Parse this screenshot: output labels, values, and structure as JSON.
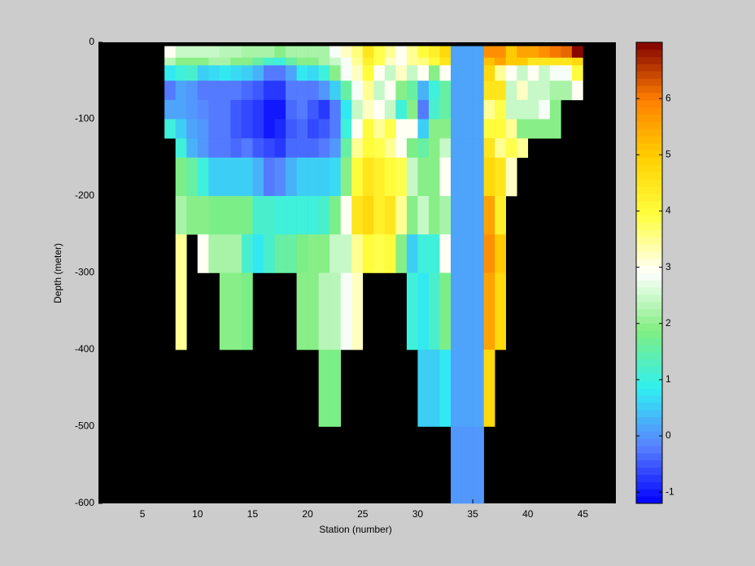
{
  "chart_data": {
    "type": "heatmap",
    "xlabel": "Station (number)",
    "ylabel": "Depth (meter)",
    "xlim": [
      1,
      48
    ],
    "xticks": [
      5,
      10,
      15,
      20,
      25,
      30,
      35,
      40,
      45
    ],
    "ylim": [
      -600,
      0
    ],
    "yticks": [
      -600,
      -500,
      -400,
      -300,
      -200,
      -100,
      0
    ],
    "clim": [
      -1.2,
      7
    ],
    "cticks": [
      -1,
      0,
      1,
      2,
      3,
      4,
      5,
      6
    ],
    "colormap": [
      "#0000ff",
      "#5a82ff",
      "#30f0f0",
      "#80ee80",
      "#ffffff",
      "#ffff40",
      "#ffd000",
      "#ff8000",
      "#800000"
    ],
    "background": "#000000",
    "xedges": [
      7,
      8,
      9,
      10,
      11,
      12,
      13,
      14,
      15,
      16,
      17,
      18,
      19,
      20,
      21,
      22,
      23,
      24,
      25,
      26,
      27,
      28,
      29,
      30,
      31,
      32,
      33,
      34,
      35,
      36,
      37,
      38,
      39,
      40,
      41,
      42,
      43,
      44,
      45
    ],
    "yedges": [
      -5,
      -20,
      -30,
      -50,
      -75,
      -100,
      -125,
      -150,
      -200,
      -250,
      -300,
      -400,
      -500,
      -600
    ],
    "z": [
      [
        3,
        2.5,
        2.5,
        2.5,
        2.5,
        2.3,
        2.3,
        2.2,
        2.2,
        2.2,
        2.0,
        2.2,
        2.2,
        2.2,
        2.2,
        2.8,
        3.2,
        3.6,
        4.5,
        3.8,
        3.5,
        3.0,
        3.5,
        4.0,
        4.3,
        4.8,
        0.1,
        0.1,
        0.1,
        5.8,
        5.8,
        5.0,
        5.5,
        5.5,
        5.8,
        6.0,
        6.2,
        7.0
      ],
      [
        2.3,
        2.0,
        2.0,
        2.0,
        2.2,
        2.2,
        2.0,
        2.0,
        1.5,
        1.2,
        1.0,
        1.5,
        2.0,
        2.0,
        2.2,
        2.5,
        2.8,
        3.5,
        4.3,
        3.8,
        3.2,
        3.0,
        3.5,
        3.6,
        4.0,
        4.5,
        0.1,
        0.1,
        0.1,
        5.2,
        5.5,
        5.0,
        5.0,
        4.5,
        4.5,
        4.5,
        4.5,
        4.8
      ],
      [
        0.8,
        1.0,
        1.2,
        0.5,
        0.6,
        0.8,
        0.6,
        0.5,
        0.3,
        -0.3,
        -0.3,
        0.2,
        0.8,
        0.6,
        1.0,
        2.0,
        2.8,
        3.2,
        4.0,
        3.0,
        2.5,
        3.2,
        2.5,
        3.0,
        2.0,
        3.0,
        0.1,
        0.1,
        0.1,
        4.8,
        3.5,
        3.0,
        2.5,
        3.0,
        2.5,
        2.8,
        2.8,
        4.0
      ],
      [
        -0.3,
        0.2,
        0,
        -0.2,
        -0.3,
        -0.2,
        -0.3,
        -0.4,
        -0.5,
        -0.8,
        -0.8,
        -0.3,
        -0.2,
        -0.2,
        0.0,
        0.5,
        1.5,
        2.8,
        3.5,
        2.5,
        3.0,
        2.0,
        1.5,
        0.3,
        1.0,
        1.5,
        0.1,
        0.1,
        0.1,
        4.5,
        4.5,
        2.5,
        3.2,
        2.5,
        2.5,
        2.2,
        2.2,
        3.0
      ],
      [
        0.1,
        0.2,
        0,
        -0.1,
        -0.3,
        -0.2,
        -0.5,
        -0.6,
        -0.8,
        -1.0,
        -1.0,
        -0.4,
        -0.3,
        -0.5,
        -0.8,
        -0.3,
        0.8,
        2.5,
        3.2,
        3.0,
        2.5,
        1.0,
        2.0,
        -0.2,
        1.2,
        1.5,
        0.1,
        0.1,
        0.1,
        3.5,
        3.8,
        2.5,
        2.5,
        2.5,
        2.8,
        2.0,
        null,
        null
      ],
      [
        1.0,
        0.5,
        0.2,
        0.0,
        -0.2,
        -0.3,
        -0.5,
        -0.6,
        -0.8,
        -1.0,
        -0.9,
        -0.5,
        -0.4,
        -0.6,
        -0.5,
        -0.3,
        1.0,
        3.0,
        4.0,
        3.5,
        3.8,
        3.0,
        3.0,
        0.5,
        2.0,
        2.0,
        0.1,
        0.1,
        0.1,
        4.0,
        4.0,
        3.5,
        2.0,
        2.0,
        2.0,
        2.0,
        null,
        null
      ],
      [
        null,
        1.0,
        0.3,
        0.0,
        -0.2,
        -0.3,
        -0.4,
        -0.3,
        -0.5,
        -0.6,
        -0.8,
        -0.4,
        -0.4,
        -0.4,
        -0.3,
        0.0,
        1.5,
        3.5,
        4.0,
        3.8,
        3.5,
        3.0,
        1.8,
        1.5,
        2.0,
        2.5,
        0.1,
        0.1,
        0.1,
        4.5,
        3.5,
        3.8,
        3.5,
        null,
        null,
        null,
        null,
        null
      ],
      [
        null,
        1.8,
        1.5,
        1.0,
        0.5,
        0.5,
        0.5,
        0.5,
        0.3,
        -0.2,
        -0.1,
        0.3,
        0.5,
        0.5,
        0.5,
        0.6,
        2.0,
        4.0,
        4.5,
        4.2,
        4.0,
        3.8,
        2.5,
        2.0,
        2.0,
        3.0,
        0.1,
        0.1,
        0.1,
        4.8,
        4.5,
        3.2,
        null,
        null,
        null,
        null,
        null,
        null
      ],
      [
        null,
        2.2,
        2.0,
        2.0,
        1.8,
        1.8,
        1.8,
        1.8,
        1.2,
        1.2,
        1.0,
        1.0,
        1.0,
        1.0,
        1.2,
        1.8,
        3.0,
        4.5,
        4.8,
        4.3,
        4.5,
        3.5,
        2.0,
        2.5,
        2.0,
        2.2,
        0.1,
        0.1,
        0.1,
        5.5,
        4.2,
        null,
        null,
        null,
        null,
        null,
        null,
        null
      ],
      [
        null,
        3.5,
        null,
        3.0,
        2.2,
        2.2,
        2.2,
        1.2,
        0.8,
        1.2,
        1.5,
        1.5,
        1.8,
        2.0,
        2.0,
        2.5,
        2.5,
        3.5,
        4.0,
        3.8,
        4.0,
        2.0,
        0.5,
        1.0,
        1.0,
        3.0,
        0.1,
        0.1,
        0.1,
        5.8,
        5.0,
        null,
        null,
        null,
        null,
        null,
        null,
        null
      ],
      [
        null,
        3.5,
        null,
        null,
        null,
        2.0,
        2.0,
        1.8,
        null,
        null,
        null,
        null,
        2.0,
        2.0,
        2.3,
        2.3,
        2.8,
        3.2,
        null,
        null,
        null,
        null,
        1.0,
        0.8,
        1.2,
        1.8,
        0.1,
        0.1,
        0.1,
        5.5,
        4.8,
        null,
        null,
        null,
        null,
        null,
        null,
        null
      ],
      [
        null,
        null,
        null,
        null,
        null,
        null,
        null,
        null,
        null,
        null,
        null,
        null,
        null,
        null,
        1.8,
        1.8,
        null,
        null,
        null,
        null,
        null,
        null,
        null,
        0.5,
        0.5,
        0.8,
        0.1,
        0.1,
        0.1,
        4.8,
        null,
        null,
        null,
        null,
        null,
        null,
        null,
        null
      ],
      [
        null,
        null,
        null,
        null,
        null,
        null,
        null,
        null,
        null,
        null,
        null,
        null,
        null,
        null,
        null,
        null,
        null,
        null,
        null,
        null,
        null,
        null,
        null,
        null,
        null,
        null,
        0.0,
        0.0,
        0.0,
        null,
        null,
        null,
        null,
        null,
        null,
        null,
        null,
        null
      ]
    ]
  }
}
